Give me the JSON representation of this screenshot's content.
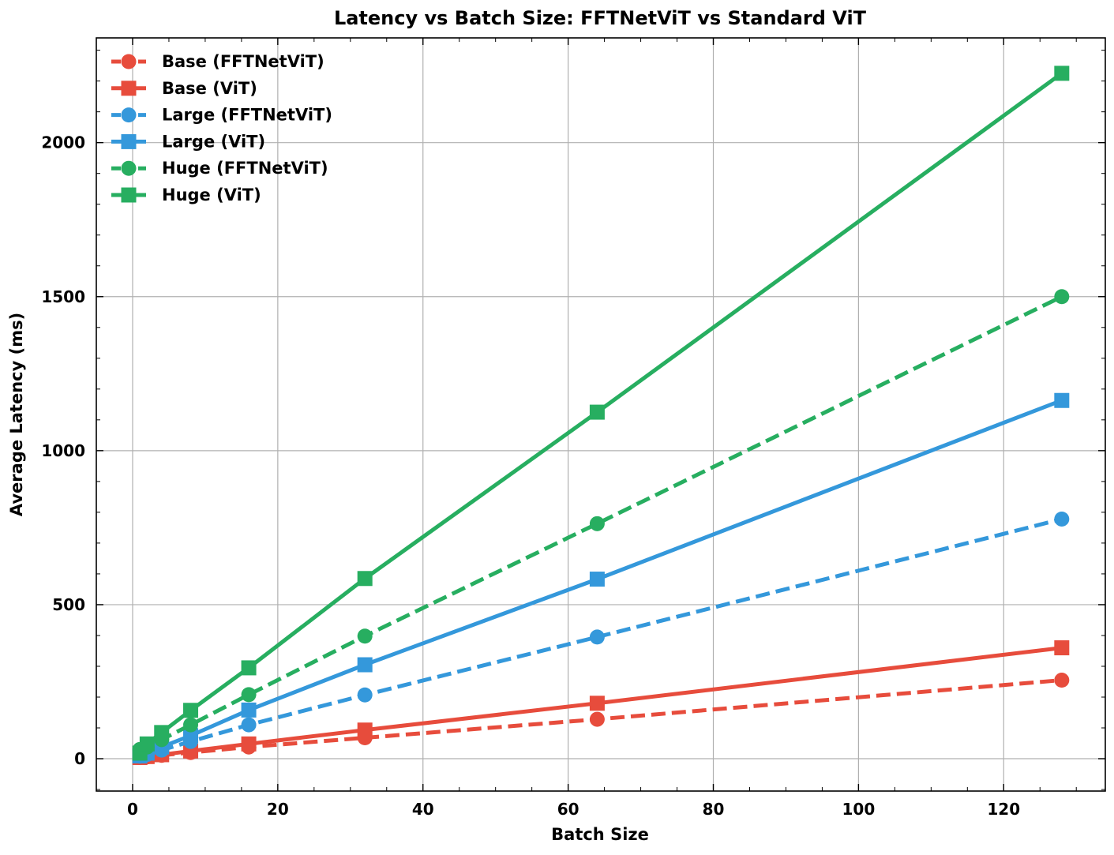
{
  "chart_data": {
    "type": "line",
    "title": "Latency vs Batch Size: FFTNetViT vs Standard ViT",
    "xlabel": "Batch Size",
    "ylabel": "Average Latency (ms)",
    "xlim": [
      -5,
      134
    ],
    "ylim": [
      -105,
      2340
    ],
    "xticks": [
      0,
      20,
      40,
      60,
      80,
      100,
      120
    ],
    "yticks": [
      0,
      500,
      1000,
      1500,
      2000
    ],
    "grid": true,
    "legend_position": "top-left",
    "x": [
      1,
      2,
      4,
      8,
      16,
      32,
      64,
      128
    ],
    "series": [
      {
        "name": "Base (FFTNetViT)",
        "color": "#e74c3c",
        "marker": "circle",
        "linestyle": "dashed",
        "values": [
          4,
          6,
          11,
          20,
          38,
          68,
          128,
          255
        ]
      },
      {
        "name": "Base (ViT)",
        "color": "#e74c3c",
        "marker": "square",
        "linestyle": "solid",
        "values": [
          4,
          7,
          13,
          25,
          48,
          93,
          180,
          360
        ]
      },
      {
        "name": "Large (FFTNetViT)",
        "color": "#3498db",
        "marker": "circle",
        "linestyle": "dashed",
        "values": [
          8,
          14,
          28,
          56,
          110,
          207,
          395,
          778
        ]
      },
      {
        "name": "Large (ViT)",
        "color": "#3498db",
        "marker": "square",
        "linestyle": "solid",
        "values": [
          9,
          18,
          38,
          75,
          158,
          305,
          583,
          1163
        ]
      },
      {
        "name": "Huge (FFTNetViT)",
        "color": "#27ae60",
        "marker": "circle",
        "linestyle": "dashed",
        "values": [
          30,
          38,
          62,
          110,
          208,
          398,
          763,
          1500
        ]
      },
      {
        "name": "Huge (ViT)",
        "color": "#27ae60",
        "marker": "square",
        "linestyle": "solid",
        "values": [
          18,
          48,
          85,
          157,
          295,
          585,
          1125,
          2225
        ]
      }
    ]
  }
}
